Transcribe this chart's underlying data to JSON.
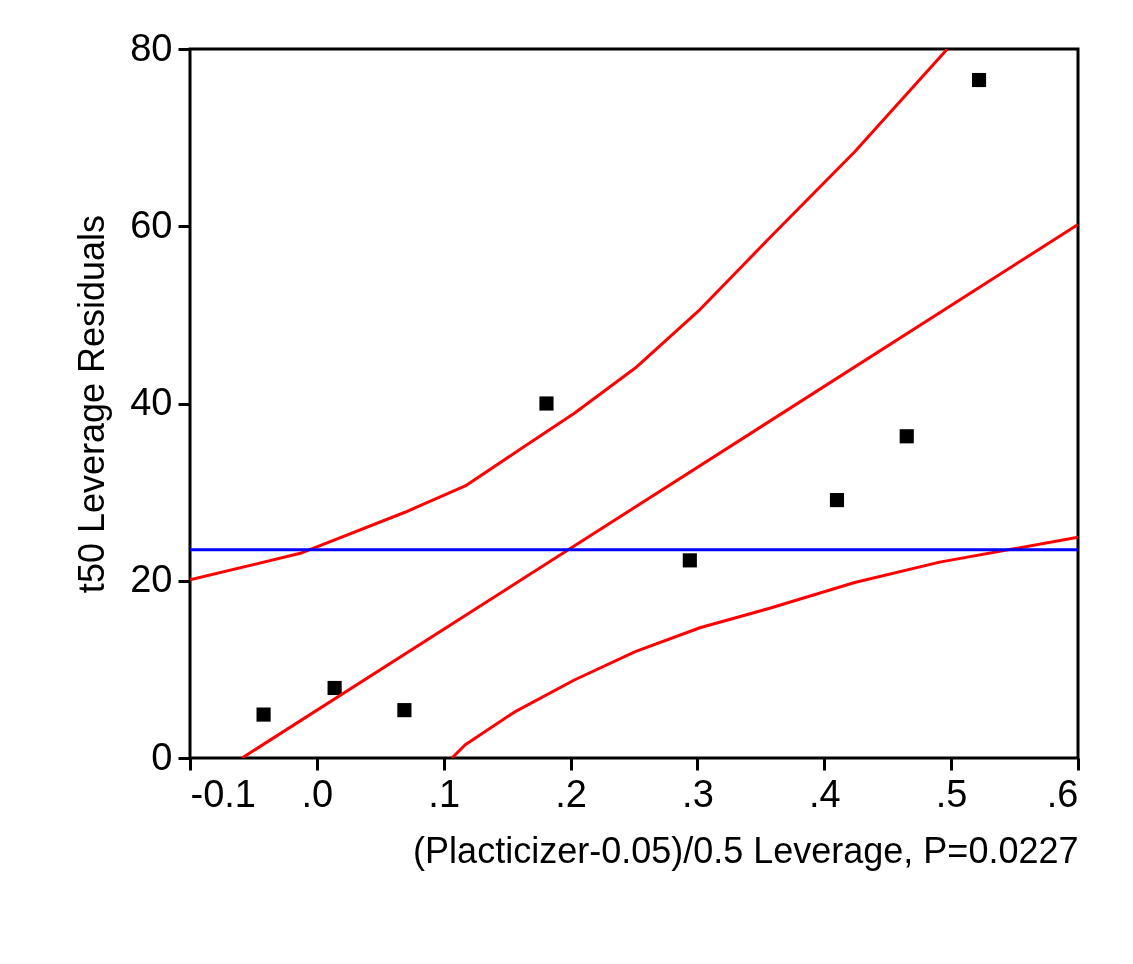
{
  "chart_data": {
    "type": "scatter",
    "xlabel": "(Placticizer-0.05)/0.5 Leverage, P=0.0227",
    "ylabel": "t50 Leverage Residuals",
    "xlim": [
      -0.1,
      0.6
    ],
    "ylim": [
      0,
      80
    ],
    "xticks": [
      -0.1,
      {
        "value": 0,
        "label": ".0"
      },
      {
        "value": 0.1,
        "label": ".1"
      },
      {
        "value": 0.2,
        "label": ".2"
      },
      {
        "value": 0.3,
        "label": ".3"
      },
      {
        "value": 0.4,
        "label": ".4"
      },
      {
        "value": 0.5,
        "label": ".5"
      },
      {
        "value": 0.6,
        "label": ".6"
      }
    ],
    "yticks": [
      0,
      20,
      40,
      60,
      80
    ],
    "grid": false,
    "marker": "square",
    "line_style": "solid",
    "series": [
      {
        "color": "#000000",
        "x": [
          -0.042,
          0.014,
          0.069,
          0.181,
          0.294,
          0.41,
          0.465,
          0.522
        ],
        "values": [
          4.9,
          7.9,
          5.4,
          40.0,
          22.3,
          29.1,
          36.3,
          76.5
        ]
      },
      {
        "type": "line",
        "marker": "none",
        "color": "#ff0000",
        "x": [
          -0.059,
          0.6
        ],
        "values": [
          0,
          60.2
        ]
      },
      {
        "type": "line",
        "marker": "none",
        "color": "#ff0000",
        "x": [
          -0.1,
          -0.013,
          0.069,
          0.117,
          0.16,
          0.203,
          0.251,
          0.302,
          0.357,
          0.424,
          0.497
        ],
        "values": [
          20.1,
          23.1,
          27.7,
          30.7,
          34.8,
          38.9,
          44.0,
          50.6,
          58.7,
          68.4,
          80
        ]
      },
      {
        "type": "line",
        "marker": "none",
        "color": "#ff0000",
        "x": [
          0.1065,
          0.117,
          0.156,
          0.203,
          0.251,
          0.302,
          0.357,
          0.424,
          0.491,
          0.6
        ],
        "values": [
          0,
          1.5,
          5.2,
          8.8,
          12.0,
          14.7,
          16.9,
          19.8,
          22.1,
          24.9
        ]
      }
    ],
    "ref_lines": [
      {
        "axis": "y",
        "value": 23.5,
        "color": "#0000ff",
        "line_style": "solid"
      }
    ]
  }
}
